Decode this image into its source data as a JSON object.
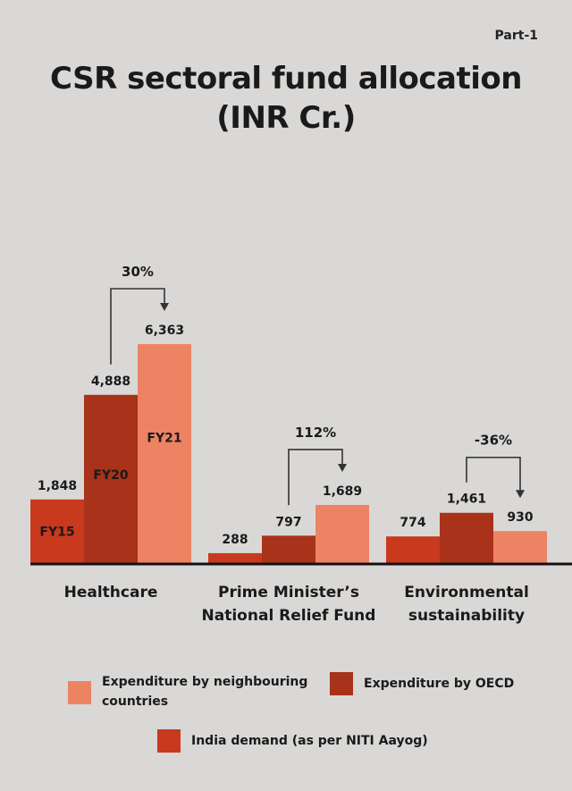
{
  "part": "Part-1",
  "title_line1": "CSR sectoral fund allocation",
  "title_line2": "(INR Cr.)",
  "colors": {
    "india": "#c8391d",
    "oecd": "#a8321a",
    "neighbour": "#ee8364"
  },
  "legend": {
    "neighbour": "Expenditure by neighbouring countries",
    "oecd": "Expenditure by OECD",
    "india": "India demand (as per NITI Aayog)"
  },
  "chart_data": {
    "type": "bar",
    "categories": [
      "Healthcare",
      "Prime Minister’s National Relief Fund",
      "Environmental sustainability"
    ],
    "category_lines": [
      [
        "Healthcare"
      ],
      [
        "Prime Minister’s",
        "National Relief Fund"
      ],
      [
        "Environmental",
        "sustainability"
      ]
    ],
    "series": [
      {
        "name": "India demand (as per NITI Aayog)",
        "color_key": "india",
        "inbar_label": "FY15",
        "values": [
          1848,
          288,
          774
        ]
      },
      {
        "name": "Expenditure by OECD",
        "color_key": "oecd",
        "inbar_label": "FY20",
        "values": [
          4888,
          797,
          1461
        ]
      },
      {
        "name": "Expenditure by neighbouring countries",
        "color_key": "neighbour",
        "inbar_label": "FY21",
        "values": [
          6363,
          1689,
          930
        ]
      }
    ],
    "value_labels": [
      [
        "1,848",
        "4,888",
        "6,363"
      ],
      [
        "288",
        "797",
        "1,689"
      ],
      [
        "774",
        "1,461",
        "930"
      ]
    ],
    "growth_labels": [
      "30%",
      "112%",
      "-36%"
    ],
    "ylim": [
      0,
      6363
    ],
    "grid": false
  }
}
